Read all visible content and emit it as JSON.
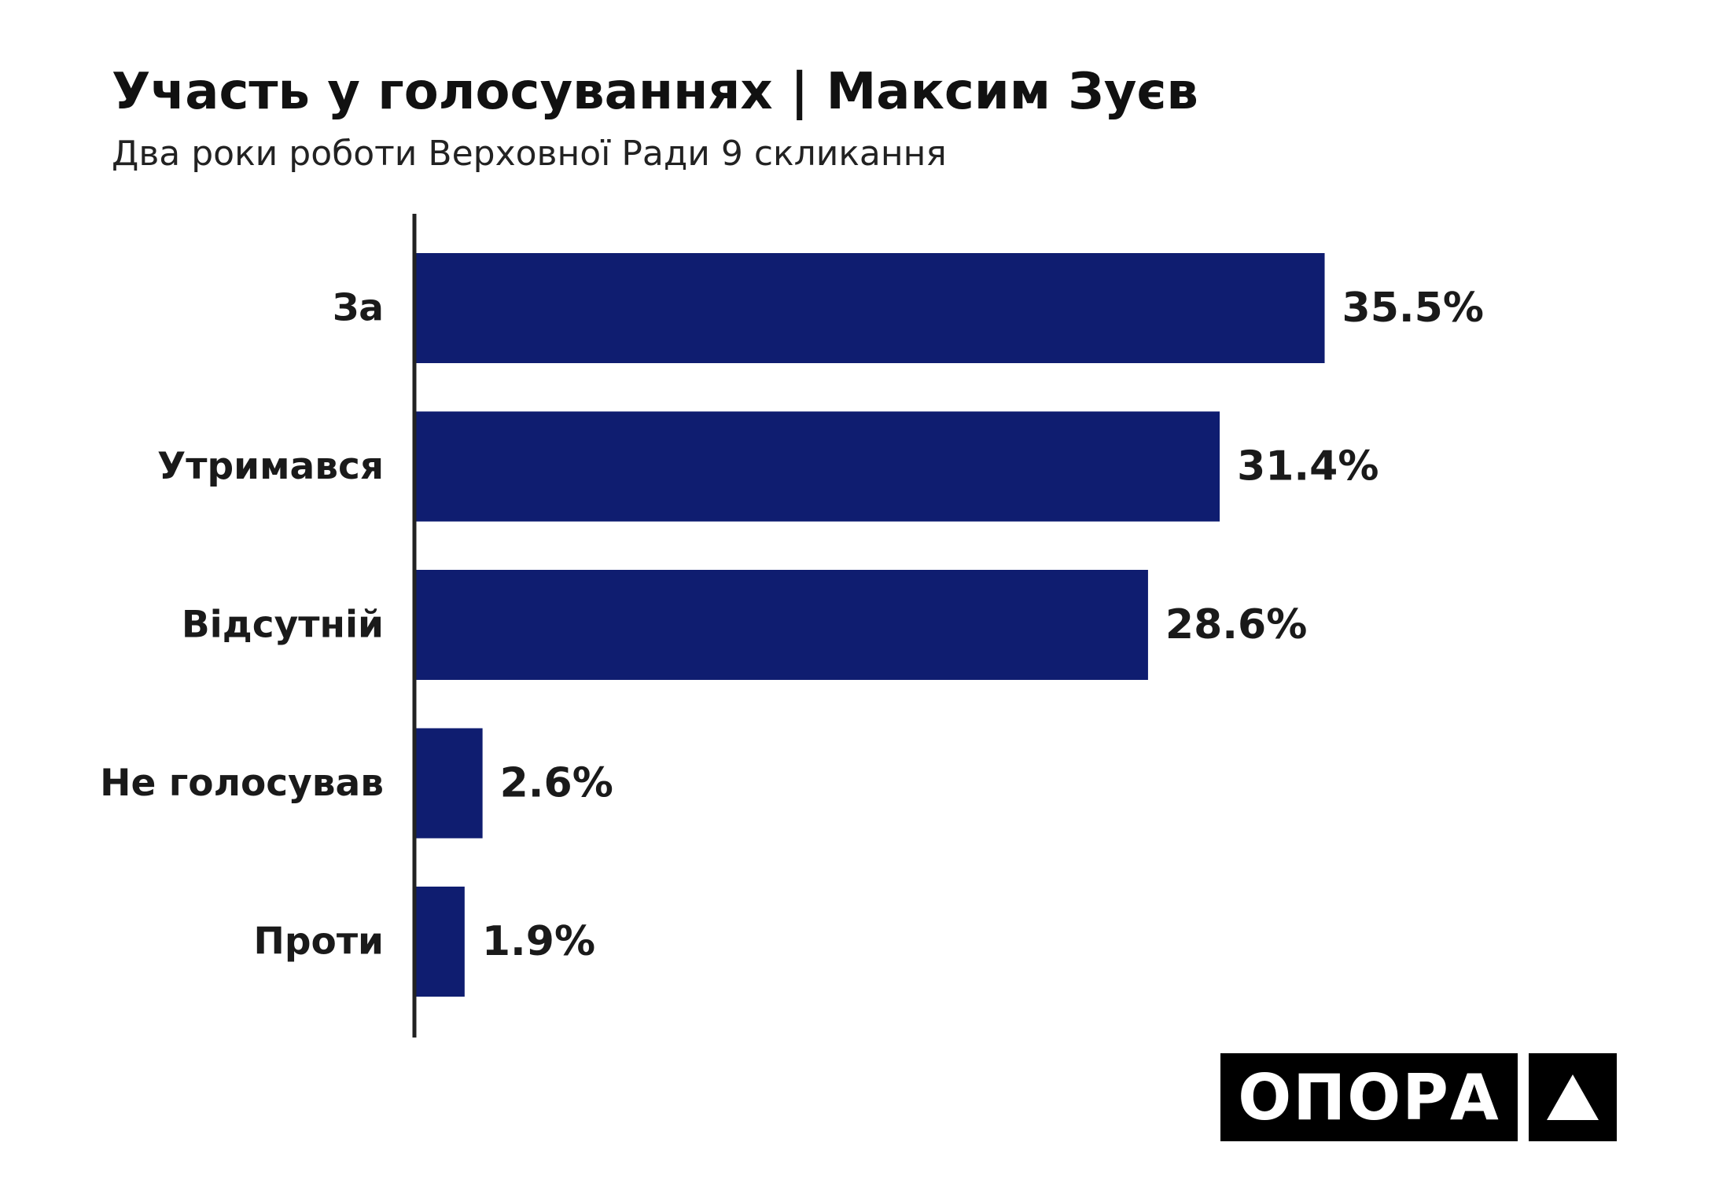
{
  "title": "Участь у голосуваннях | Максим Зуєв",
  "subtitle": "Два роки роботи Верховної Ради 9 скликання",
  "colors": {
    "bar": "#0f1d70",
    "axis": "#222222",
    "text": "#1a1a1a"
  },
  "logo": {
    "text": "ОПОРА",
    "icon": "triangle-icon"
  },
  "chart_data": {
    "type": "bar",
    "orientation": "horizontal",
    "categories": [
      "За",
      "Утримався",
      "Відсутній",
      "Не голосував",
      "Проти"
    ],
    "values": [
      35.5,
      31.4,
      28.6,
      2.6,
      1.9
    ],
    "value_labels": [
      "35.5%",
      "31.4%",
      "28.6%",
      "2.6%",
      "1.9%"
    ],
    "unit": "%",
    "title": "Участь у голосуваннях | Максим Зуєв",
    "subtitle": "Два роки роботи Верховної Ради 9 скликання",
    "grid": false,
    "legend": "none"
  }
}
